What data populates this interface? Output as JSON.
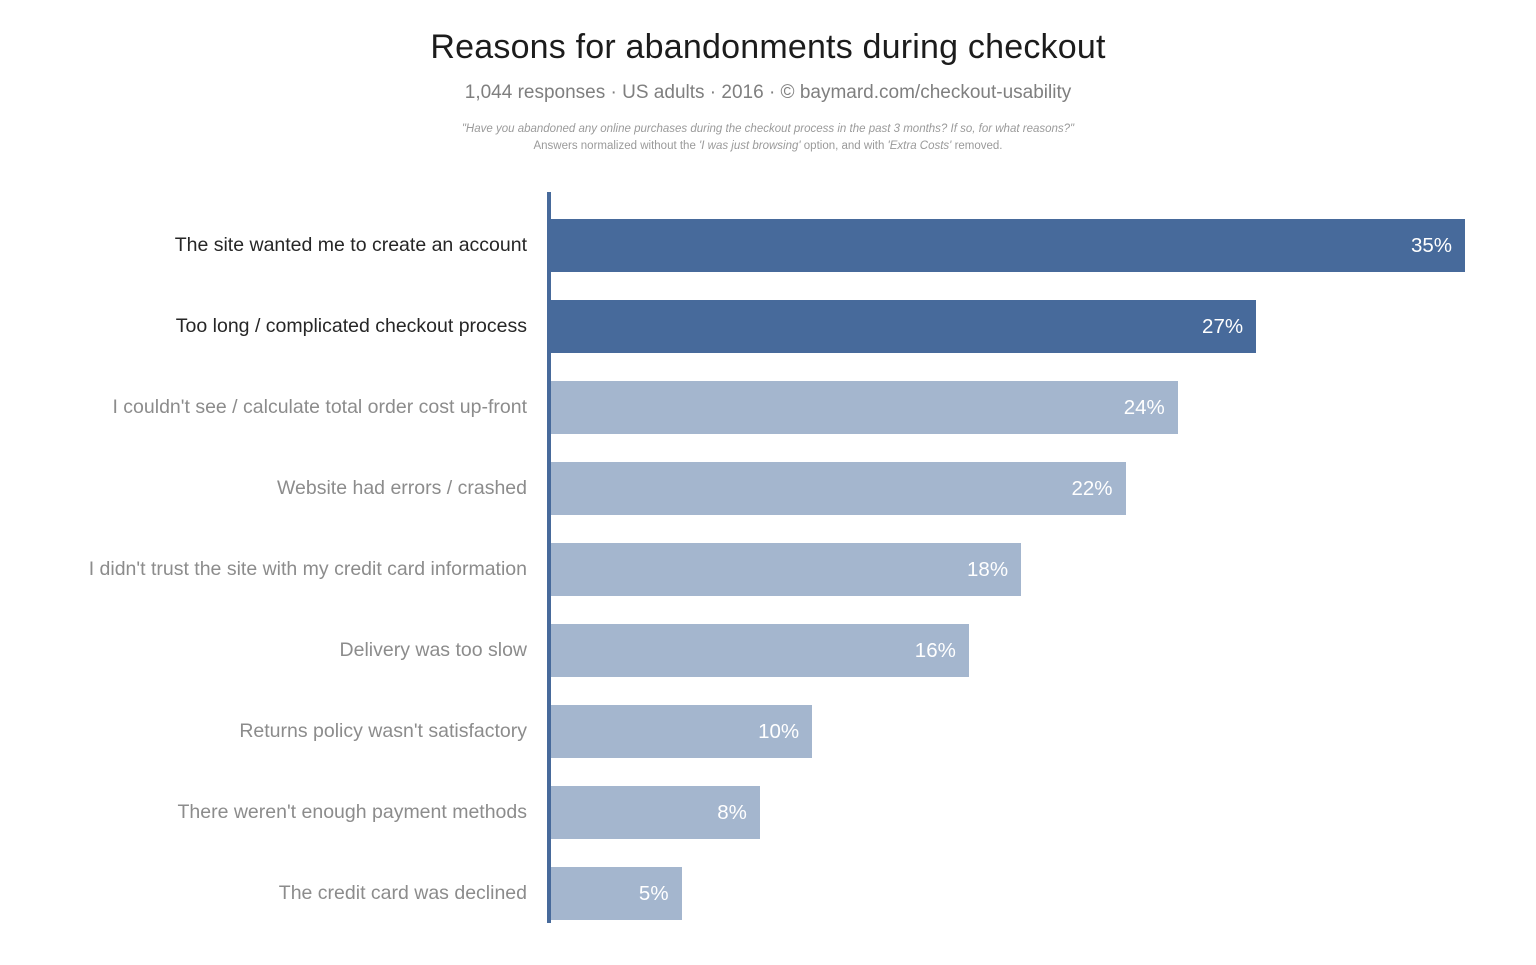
{
  "header": {
    "title": "Reasons for abandonments during checkout",
    "subtitle": "1,044 responses · US adults · 2016 · © baymard.com/checkout-usability",
    "note_line1": "\"Have you abandoned any online purchases during the checkout process in the past 3 months? If so, for what reasons?\"",
    "note_line2": {
      "part1": "Answers normalized without the ",
      "italic1": "'I was just browsing'",
      "part2": " option, and with ",
      "italic2": "'Extra Costs'",
      "part3": " removed."
    }
  },
  "chart_data": {
    "type": "bar",
    "orientation": "horizontal",
    "title": "Reasons for abandonments during checkout",
    "categories": [
      "The site wanted me to create an account",
      "Too long / complicated checkout process",
      "I couldn't see / calculate total order cost up-front",
      "Website had errors / crashed",
      "I didn't trust the site with my credit card information",
      "Delivery was too slow",
      "Returns policy wasn't satisfactory",
      "There weren't enough payment methods",
      "The credit card was declined"
    ],
    "values": [
      35,
      27,
      24,
      22,
      18,
      16,
      10,
      8,
      5
    ],
    "value_labels": [
      "35%",
      "27%",
      "24%",
      "22%",
      "18%",
      "16%",
      "10%",
      "8%",
      "5%"
    ],
    "xlim": [
      0,
      35
    ],
    "grid": false,
    "legend": "none",
    "highlight_rows": 2,
    "colors": {
      "bar_highlight": "#476a9b",
      "bar_normal": "#a4b6ce",
      "axis_line": "#476a9b",
      "category_highlight": "#262626",
      "category_normal": "#8c8c8c",
      "value_text": "#ffffff"
    }
  }
}
